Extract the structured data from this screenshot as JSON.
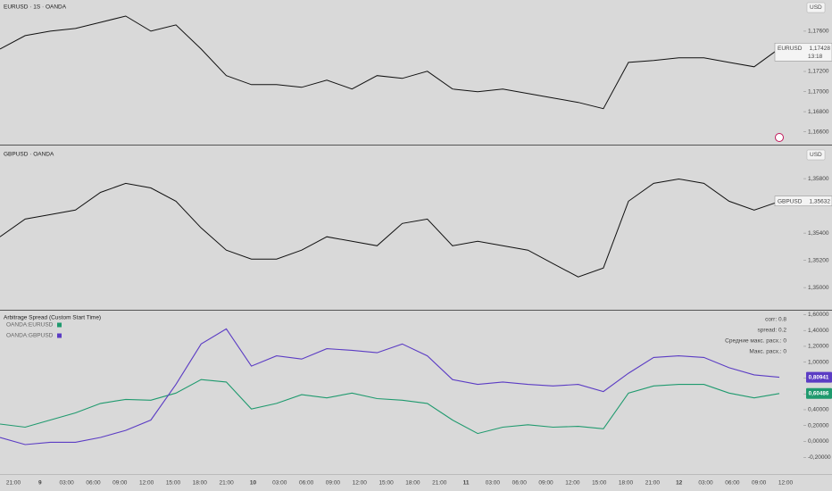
{
  "chart_data": [
    {
      "type": "line",
      "title": "EURUSD · 1S · OANDA",
      "currency": "USD",
      "series": [
        {
          "name": "EURUSD",
          "color": "#111111",
          "values": [
            1.17423,
            1.17556,
            1.176,
            1.17627,
            1.17688,
            1.1775,
            1.176,
            1.17662,
            1.17423,
            1.17158,
            1.17069,
            1.17069,
            1.17042,
            1.17113,
            1.17025,
            1.17158,
            1.17131,
            1.17202,
            1.17025,
            1.16998,
            1.17025,
            1.1698,
            1.16936,
            1.16892,
            1.1683,
            1.1729,
            1.17308,
            1.17335,
            1.17335,
            1.1729,
            1.17246,
            1.17428
          ],
          "last_label": "1,17428",
          "countdown": "13:18"
        }
      ],
      "ylim": [
        1.1649,
        1.1791
      ],
      "yticks": [
        {
          "value": 1.176,
          "label": "1,17600"
        },
        {
          "value": 1.172,
          "label": "1,17200"
        },
        {
          "value": 1.17,
          "label": "1,17000"
        },
        {
          "value": 1.168,
          "label": "1,16800"
        },
        {
          "value": 1.166,
          "label": "1,16600"
        }
      ]
    },
    {
      "type": "line",
      "title": "GBPUSD · OANDA",
      "currency": "USD",
      "series": [
        {
          "name": "GBPUSD",
          "color": "#111111",
          "values": [
            1.35373,
            1.35503,
            1.35536,
            1.35569,
            1.35699,
            1.35765,
            1.35732,
            1.35634,
            1.35438,
            1.35275,
            1.35209,
            1.35209,
            1.35275,
            1.35373,
            1.3534,
            1.35307,
            1.35471,
            1.35503,
            1.35307,
            1.3534,
            1.35307,
            1.35275,
            1.35176,
            1.35078,
            1.35144,
            1.35634,
            1.35765,
            1.35797,
            1.35765,
            1.35634,
            1.35569,
            1.35632
          ],
          "last_label": "1,35632"
        }
      ],
      "ylim": [
        1.3485,
        1.3603
      ],
      "yticks": [
        {
          "value": 1.358,
          "label": "1,35800"
        },
        {
          "value": 1.354,
          "label": "1,35400"
        },
        {
          "value": 1.352,
          "label": "1,35200"
        },
        {
          "value": 1.35,
          "label": "1,35000"
        }
      ]
    },
    {
      "type": "line",
      "title": "Arbitrage Spread (Custom Start Time)",
      "series": [
        {
          "name": "OANDA:EURUSD",
          "color": "#1f9a6e",
          "values": [
            0.22,
            0.18,
            0.27,
            0.36,
            0.48,
            0.53,
            0.52,
            0.61,
            0.78,
            0.75,
            0.41,
            0.48,
            0.59,
            0.55,
            0.61,
            0.54,
            0.52,
            0.48,
            0.27,
            0.1,
            0.18,
            0.21,
            0.18,
            0.19,
            0.16,
            0.61,
            0.7,
            0.72,
            0.72,
            0.61,
            0.55,
            0.60486
          ],
          "last_label": "0,60486"
        },
        {
          "name": "OANDA:GBPUSD",
          "color": "#5b3cc4",
          "values": [
            0.05,
            -0.04,
            -0.01,
            -0.01,
            0.05,
            0.14,
            0.27,
            0.72,
            1.23,
            1.42,
            0.95,
            1.08,
            1.04,
            1.17,
            1.15,
            1.12,
            1.23,
            1.08,
            0.78,
            0.72,
            0.75,
            0.72,
            0.7,
            0.72,
            0.63,
            0.86,
            1.06,
            1.08,
            1.06,
            0.93,
            0.84,
            0.80941
          ],
          "last_label": "0,80941"
        }
      ],
      "stats": [
        "corr: 0.8",
        "spread: 0.2",
        "Средние макс. расх.: 0",
        "Макс. расх.: 0"
      ],
      "ylim": [
        -0.4,
        1.65
      ],
      "yticks": [
        {
          "value": 1.6,
          "label": "1,60000"
        },
        {
          "value": 1.4,
          "label": "1,40000"
        },
        {
          "value": 1.2,
          "label": "1,20000"
        },
        {
          "value": 1.0,
          "label": "1,00000"
        },
        {
          "value": 0.8,
          "label": "0,80000"
        },
        {
          "value": 0.6,
          "label": "0,60000"
        },
        {
          "value": 0.4,
          "label": "0,40000"
        },
        {
          "value": 0.2,
          "label": "0,20000"
        },
        {
          "value": 0.0,
          "label": "0,00000"
        },
        {
          "value": -0.2,
          "label": "-0,20000"
        }
      ],
      "x_labels": [
        "21:00",
        "9",
        "03:00",
        "06:00",
        "09:00",
        "12:00",
        "15:00",
        "18:00",
        "21:00",
        "10",
        "03:00",
        "06:00",
        "09:00",
        "12:00",
        "15:00",
        "18:00",
        "21:00",
        "11",
        "03:00",
        "06:00",
        "09:00",
        "12:00",
        "15:00",
        "18:00",
        "21:00",
        "12",
        "03:00",
        "06:00",
        "09:00",
        "12:00"
      ]
    }
  ]
}
